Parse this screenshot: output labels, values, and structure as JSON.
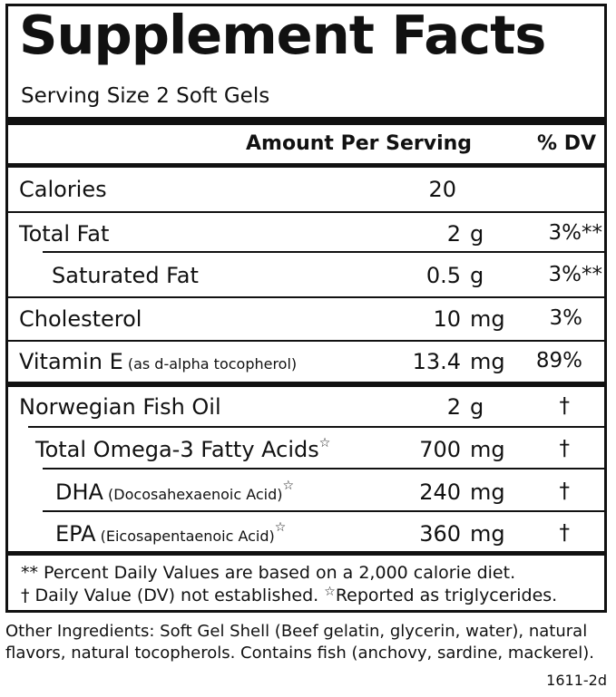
{
  "panel": {
    "title": "Supplement Facts",
    "serving_size": "Serving Size 2 Soft Gels",
    "header_amount": "Amount Per Serving",
    "header_dv": "% DV"
  },
  "rows": {
    "calories": {
      "label": "Calories",
      "amount": "20",
      "unit": "",
      "dv": ""
    },
    "total_fat": {
      "label": "Total Fat",
      "amount": "2",
      "unit": "g",
      "dv": "3%**"
    },
    "saturated_fat": {
      "label": "Saturated Fat",
      "amount": "0.5",
      "unit": "g",
      "dv": "3%**"
    },
    "cholesterol": {
      "label": "Cholesterol",
      "amount": "10",
      "unit": "mg",
      "dv": "3%"
    },
    "vitamin_e": {
      "label": "Vitamin E",
      "sub": "(as d-alpha tocopherol)",
      "amount": "13.4",
      "unit": "mg",
      "dv": "89%"
    },
    "fish_oil": {
      "label": "Norwegian Fish Oil",
      "amount": "2",
      "unit": "g",
      "dv": "†"
    },
    "omega3": {
      "label": "Total Omega-3 Fatty Acids",
      "star": "☆",
      "amount": "700",
      "unit": "mg",
      "dv": "†"
    },
    "dha": {
      "label": "DHA",
      "sub": "(Docosahexaenoic Acid)",
      "star": "☆",
      "amount": "240",
      "unit": "mg",
      "dv": "†"
    },
    "epa": {
      "label": "EPA",
      "sub": "(Eicosapentaenoic Acid)",
      "star": "☆",
      "amount": "360",
      "unit": "mg",
      "dv": "†"
    }
  },
  "footnotes": {
    "line1": "** Percent Daily Values are based on a 2,000 calorie diet.",
    "line2a": "† Daily Value (DV) not established.",
    "line2_star": "☆",
    "line2b": "Reported as triglycerides."
  },
  "other_ingredients": "Other Ingredients: Soft Gel Shell (Beef gelatin, glycerin, water), natural flavors, natural tocopherols. Contains fish (anchovy, sardine, mackerel).",
  "code": "1611-2d"
}
